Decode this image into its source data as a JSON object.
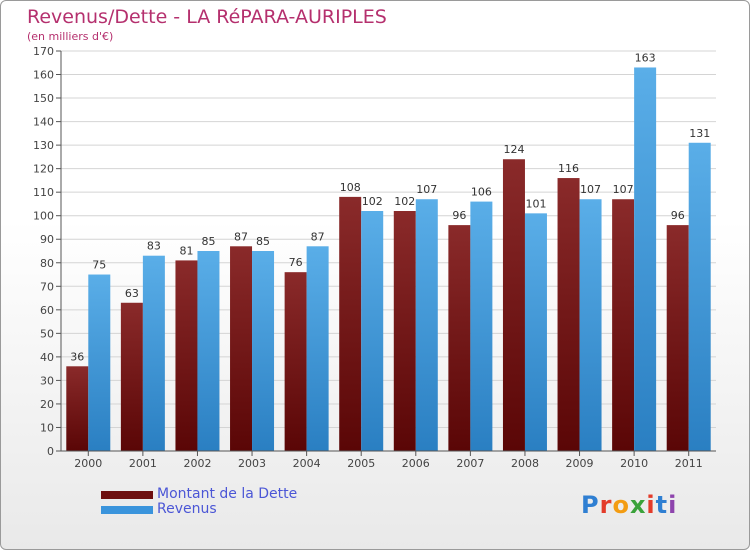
{
  "title": "Revenus/Dette - LA RéPARA-AURIPLES",
  "subtitle": "(en milliers d'€)",
  "logo": {
    "letters": [
      "P",
      "r",
      "o",
      "x",
      "i",
      "t",
      "i"
    ],
    "colors": [
      "#2f7fd2",
      "#e33b2a",
      "#f39c12",
      "#3aa23a",
      "#e33b2a",
      "#2f7fd2",
      "#8e44ad"
    ]
  },
  "chart_data": {
    "type": "bar",
    "title": "Revenus/Dette - LA RéPARA-AURIPLES",
    "ylabel": "(en milliers d'€)",
    "categories": [
      "2000",
      "2001",
      "2002",
      "2003",
      "2004",
      "2005",
      "2006",
      "2007",
      "2008",
      "2009",
      "2010",
      "2011"
    ],
    "series": [
      {
        "name": "Montant de la Dette",
        "color": "#7a1a1a",
        "values": [
          36,
          63,
          81,
          87,
          76,
          108,
          102,
          96,
          124,
          116,
          107,
          96
        ]
      },
      {
        "name": "Revenus",
        "color": "#3a94dc",
        "values": [
          75,
          83,
          85,
          85,
          87,
          102,
          107,
          106,
          101,
          107,
          163,
          131
        ]
      }
    ],
    "ylim": [
      0,
      170
    ],
    "yticks": [
      0,
      10,
      20,
      30,
      40,
      50,
      60,
      70,
      80,
      90,
      100,
      110,
      120,
      130,
      140,
      150,
      160,
      170
    ],
    "grid": true,
    "legend_position": "bottom-left"
  }
}
